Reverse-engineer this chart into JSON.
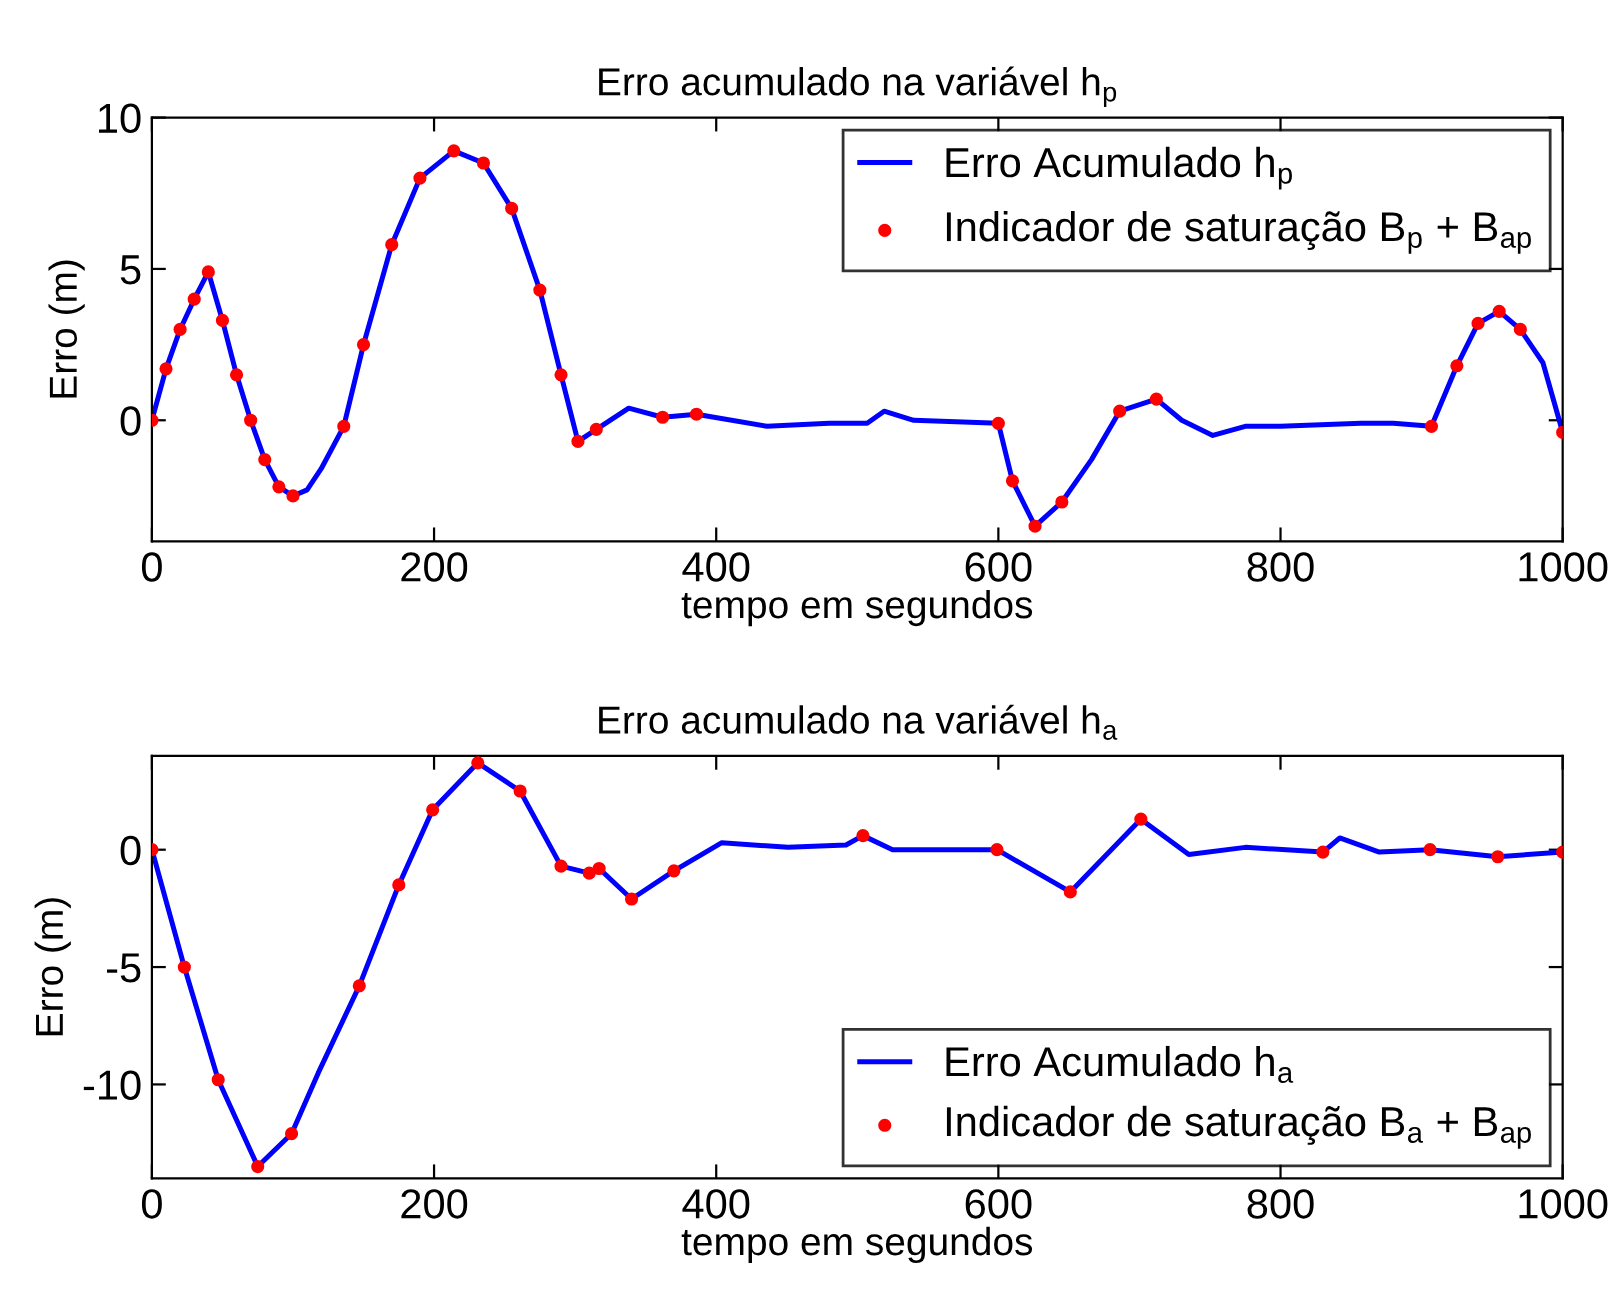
{
  "chart_data": [
    {
      "type": "line",
      "title": "Erro acumulado na variável h$_{p}$",
      "xlabel": "tempo em segundos",
      "ylabel": "Erro (m)",
      "xlim": [
        0,
        1000
      ],
      "xticks": [
        0,
        200,
        400,
        600,
        800,
        1000
      ],
      "ylim": [
        -4,
        10
      ],
      "yticks": [
        0,
        5,
        10
      ],
      "grid": false,
      "legend": "top right",
      "series": [
        {
          "name": "Erro Acumulado h$_{p}$",
          "color": "#0000ff",
          "x": [
            0,
            10,
            20,
            30,
            40,
            50,
            60,
            70,
            80,
            90,
            100,
            110,
            120,
            136,
            150,
            170,
            190,
            214,
            235,
            255,
            275,
            290,
            302,
            315,
            338,
            362,
            386,
            436,
            480,
            507,
            519,
            540,
            600,
            610,
            626,
            645,
            666,
            686,
            712,
            730,
            752,
            775,
            800,
            857,
            880,
            907,
            925,
            940,
            955,
            970,
            986,
            1000
          ],
          "values": [
            0,
            1.7,
            3.0,
            4.0,
            4.9,
            3.3,
            1.5,
            0,
            -1.3,
            -2.2,
            -2.5,
            -2.3,
            -1.6,
            -0.2,
            2.5,
            5.8,
            8.0,
            8.9,
            8.5,
            7.0,
            4.3,
            1.5,
            -0.7,
            -0.3,
            0.4,
            0.1,
            0.2,
            -0.2,
            -0.1,
            -0.1,
            0.3,
            0,
            -0.1,
            -2.0,
            -3.5,
            -2.7,
            -1.3,
            0.3,
            0.7,
            0.0,
            -0.5,
            -0.2,
            -0.2,
            -0.1,
            -0.1,
            -0.2,
            1.8,
            3.2,
            3.6,
            3.0,
            1.9,
            -0.4
          ]
        },
        {
          "name": "Indicador de saturação B$_{p}$ + B$_{ap}$",
          "color": "#ff0000",
          "type": "scatter",
          "marker": "circle",
          "x": [
            0,
            10,
            20,
            30,
            40,
            50,
            60,
            70,
            80,
            90,
            100,
            136,
            150,
            170,
            190,
            214,
            235,
            255,
            275,
            290,
            302,
            315,
            362,
            386,
            600,
            610,
            626,
            645,
            686,
            712,
            907,
            925,
            940,
            955,
            970,
            1000
          ],
          "values": [
            0,
            1.7,
            3.0,
            4.0,
            4.9,
            3.3,
            1.5,
            0,
            -1.3,
            -2.2,
            -2.5,
            -0.2,
            2.5,
            5.8,
            8.0,
            8.9,
            8.5,
            7.0,
            4.3,
            1.5,
            -0.7,
            -0.3,
            0.1,
            0.2,
            -0.1,
            -2.0,
            -3.5,
            -2.7,
            0.3,
            0.7,
            -0.2,
            1.8,
            3.2,
            3.6,
            3.0,
            -0.4
          ]
        }
      ]
    },
    {
      "type": "line",
      "title": "Erro acumulado na variável h$_{a}$",
      "xlabel": "tempo em segundos",
      "ylabel": "Erro (m)",
      "xlim": [
        0,
        1000
      ],
      "xticks": [
        0,
        200,
        400,
        600,
        800,
        1000
      ],
      "ylim": [
        -14,
        4
      ],
      "yticks": [
        -10,
        -5,
        0
      ],
      "grid": false,
      "legend": "bottom right",
      "series": [
        {
          "name": "Erro Acumulado h$_{a}$",
          "color": "#0000ff",
          "x": [
            0,
            23,
            47,
            75,
            99,
            118,
            147,
            175,
            199,
            231,
            261,
            290,
            310,
            317,
            340,
            370,
            404,
            451,
            492,
            504,
            525,
            599,
            651,
            701,
            735,
            775,
            830,
            842,
            870,
            906,
            954,
            1000
          ],
          "values": [
            0,
            -5.0,
            -9.8,
            -13.5,
            -12.1,
            -9.5,
            -5.8,
            -1.5,
            1.7,
            3.7,
            2.5,
            -0.7,
            -1.0,
            -0.8,
            -2.1,
            -0.9,
            0.3,
            0.1,
            0.2,
            0.6,
            0,
            0,
            -1.8,
            1.3,
            -0.2,
            0.1,
            -0.1,
            0.5,
            -0.1,
            0,
            -0.3,
            -0.1
          ]
        },
        {
          "name": "Indicador de saturação B$_{a}$ + B$_{ap}$",
          "color": "#ff0000",
          "type": "scatter",
          "marker": "circle",
          "x": [
            0,
            23,
            47,
            75,
            99,
            147,
            175,
            199,
            231,
            261,
            290,
            310,
            317,
            340,
            370,
            504,
            599,
            651,
            701,
            830,
            906,
            954,
            1000
          ],
          "values": [
            0,
            -5.0,
            -9.8,
            -13.5,
            -12.1,
            -5.8,
            -1.5,
            1.7,
            3.7,
            2.5,
            -0.7,
            -1.0,
            -0.8,
            -2.1,
            -0.9,
            0.6,
            0,
            -1.8,
            1.3,
            -0.1,
            0,
            -0.3,
            -0.1
          ]
        }
      ]
    }
  ]
}
